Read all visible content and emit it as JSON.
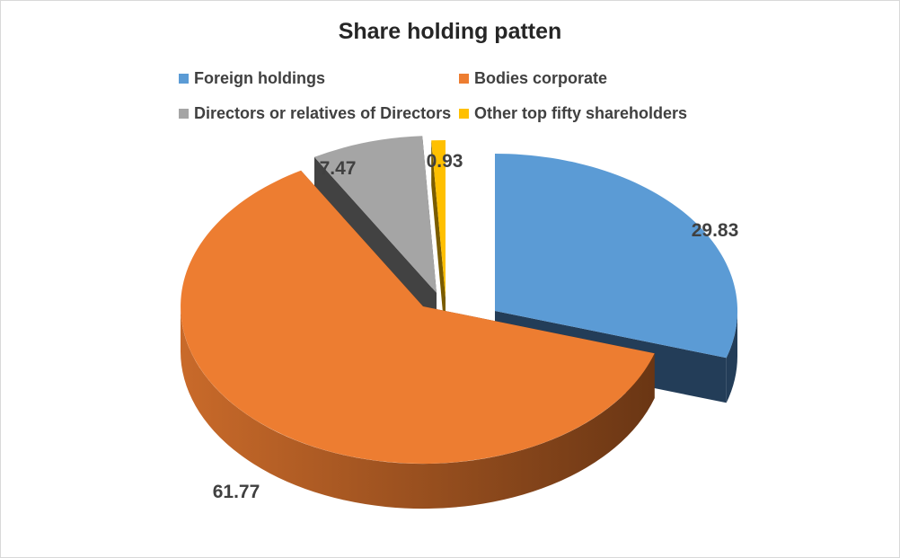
{
  "chart_data": {
    "type": "pie",
    "title": "Share holding patten",
    "categories": [
      "Foreign holdings",
      "Bodies corporate",
      "Directors or relatives of Directors",
      "Other top fifty shareholders"
    ],
    "values": [
      29.83,
      61.77,
      7.47,
      0.93
    ],
    "data_labels": [
      "29.83",
      "61.77",
      "7.47",
      "0.93"
    ],
    "colors": [
      "#5b9bd5",
      "#ed7d31",
      "#a5a5a5",
      "#ffc000"
    ],
    "side_colors": [
      "#233d58",
      "#6a3614",
      "#424242",
      "#7a5c00"
    ],
    "style": "3d exploded pie",
    "legend_position": "top"
  }
}
